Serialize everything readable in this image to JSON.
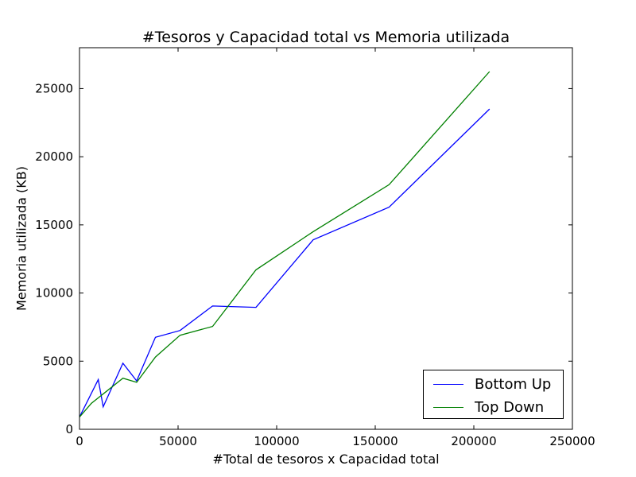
{
  "chart_data": {
    "type": "line",
    "title": "#Tesoros y Capacidad total vs Memoria utilizada",
    "xlabel": "#Total de tesoros x Capacidad total",
    "ylabel": "Memoria utilizada (KB)",
    "xlim": [
      0,
      250000
    ],
    "ylim": [
      0,
      28000
    ],
    "xticks": [
      0,
      50000,
      100000,
      150000,
      200000,
      250000
    ],
    "yticks": [
      0,
      5000,
      10000,
      15000,
      20000,
      25000
    ],
    "grid": false,
    "legend_position": "lower-right",
    "series": [
      {
        "name": "Bottom Up",
        "color": "#0000ff",
        "points": [
          [
            0,
            900
          ],
          [
            9500,
            3650
          ],
          [
            12000,
            1650
          ],
          [
            22000,
            4850
          ],
          [
            29000,
            3550
          ],
          [
            38500,
            6750
          ],
          [
            51000,
            7250
          ],
          [
            67500,
            9050
          ],
          [
            89500,
            8950
          ],
          [
            118500,
            13900
          ],
          [
            157000,
            16300
          ],
          [
            208000,
            23500
          ]
        ]
      },
      {
        "name": "Top Down",
        "color": "#008000",
        "points": [
          [
            0,
            900
          ],
          [
            6000,
            1900
          ],
          [
            22000,
            3750
          ],
          [
            29000,
            3450
          ],
          [
            38500,
            5300
          ],
          [
            51000,
            6900
          ],
          [
            67500,
            7550
          ],
          [
            89500,
            11700
          ],
          [
            118500,
            14500
          ],
          [
            157000,
            17950
          ],
          [
            208000,
            26250
          ]
        ]
      }
    ]
  }
}
